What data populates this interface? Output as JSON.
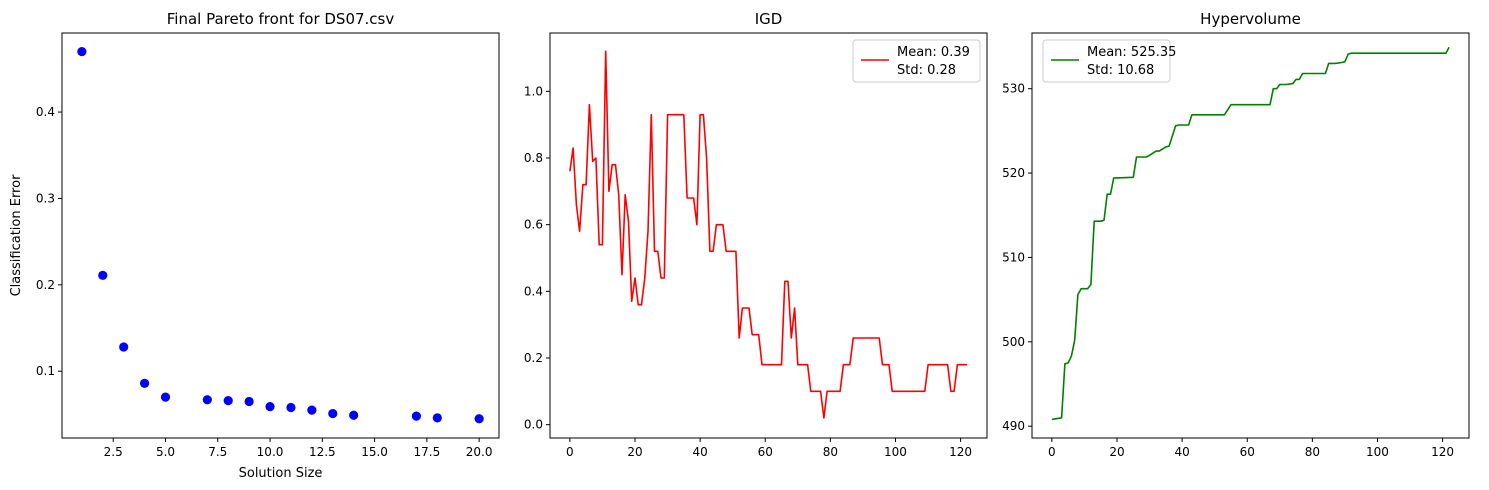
{
  "chart_data": [
    {
      "type": "scatter",
      "title": "Final Pareto front for DS07.csv",
      "xlabel": "Solution Size",
      "ylabel": "Classification Error",
      "xlim": [
        0.05,
        20.95
      ],
      "ylim": [
        0.0227,
        0.4915
      ],
      "xticks": [
        2.5,
        5.0,
        7.5,
        10.0,
        12.5,
        15.0,
        17.5,
        20.0
      ],
      "xtick_labels": [
        "2.5",
        "5.0",
        "7.5",
        "10.0",
        "12.5",
        "15.0",
        "17.5",
        "20.0"
      ],
      "yticks": [
        0.1,
        0.2,
        0.3,
        0.4
      ],
      "ytick_labels": [
        "0.1",
        "0.2",
        "0.3",
        "0.4"
      ],
      "color": "#0000ff",
      "x": [
        1,
        2,
        3,
        4,
        5,
        7,
        8,
        9,
        10,
        11,
        12,
        13,
        14,
        17,
        18,
        20
      ],
      "y": [
        0.47,
        0.211,
        0.128,
        0.086,
        0.07,
        0.067,
        0.066,
        0.065,
        0.059,
        0.058,
        0.055,
        0.051,
        0.049,
        0.048,
        0.046,
        0.045
      ],
      "grid": false
    },
    {
      "type": "line",
      "title": "IGD",
      "xlabel": "",
      "ylabel": "",
      "xlim": [
        -6.1,
        128.1
      ],
      "ylim": [
        -0.04,
        1.175
      ],
      "xticks": [
        0,
        20,
        40,
        60,
        80,
        100,
        120
      ],
      "xtick_labels": [
        "0",
        "20",
        "40",
        "60",
        "80",
        "100",
        "120"
      ],
      "yticks": [
        0.0,
        0.2,
        0.4,
        0.6,
        0.8,
        1.0
      ],
      "ytick_labels": [
        "0.0",
        "0.2",
        "0.4",
        "0.6",
        "0.8",
        "1.0"
      ],
      "legend": {
        "placement": "upper-right",
        "lines": [
          "Mean: 0.39",
          "Std: 0.28"
        ]
      },
      "grid": false,
      "series": [
        {
          "color": "#ff0000",
          "x": [
            0,
            1,
            2,
            3,
            4,
            5,
            6,
            7,
            8,
            9,
            10,
            11,
            12,
            13,
            14,
            15,
            16,
            17,
            18,
            19,
            20,
            21,
            22,
            23,
            24,
            25,
            26,
            27,
            28,
            29,
            30,
            35,
            36,
            37,
            38,
            39,
            40,
            41,
            42,
            43,
            44,
            45,
            46,
            47,
            48,
            51,
            52,
            53,
            55,
            56,
            58,
            59,
            65,
            66,
            67,
            68,
            69,
            70,
            73,
            74,
            77,
            78,
            79,
            83,
            84,
            86,
            87,
            95,
            96,
            98,
            99,
            109,
            110,
            116,
            117,
            118,
            119,
            122
          ],
          "y": [
            0.76,
            0.83,
            0.66,
            0.58,
            0.72,
            0.72,
            0.96,
            0.79,
            0.8,
            0.54,
            0.54,
            1.12,
            0.7,
            0.78,
            0.78,
            0.69,
            0.45,
            0.69,
            0.61,
            0.37,
            0.44,
            0.36,
            0.36,
            0.44,
            0.58,
            0.93,
            0.52,
            0.52,
            0.44,
            0.44,
            0.93,
            0.93,
            0.68,
            0.68,
            0.68,
            0.6,
            0.93,
            0.93,
            0.8,
            0.52,
            0.52,
            0.6,
            0.6,
            0.6,
            0.52,
            0.52,
            0.26,
            0.35,
            0.35,
            0.27,
            0.27,
            0.18,
            0.18,
            0.43,
            0.43,
            0.26,
            0.35,
            0.18,
            0.18,
            0.1,
            0.1,
            0.02,
            0.1,
            0.1,
            0.18,
            0.18,
            0.26,
            0.26,
            0.18,
            0.18,
            0.1,
            0.1,
            0.18,
            0.18,
            0.1,
            0.1,
            0.18,
            0.18
          ]
        }
      ]
    },
    {
      "type": "line",
      "title": "Hypervolume",
      "xlabel": "",
      "ylabel": "",
      "xlim": [
        -6.1,
        128.1
      ],
      "ylim": [
        488.6,
        536.6
      ],
      "xticks": [
        0,
        20,
        40,
        60,
        80,
        100,
        120
      ],
      "xtick_labels": [
        "0",
        "20",
        "40",
        "60",
        "80",
        "100",
        "120"
      ],
      "yticks": [
        490,
        500,
        510,
        520,
        530
      ],
      "ytick_labels": [
        "490",
        "500",
        "510",
        "520",
        "530"
      ],
      "legend": {
        "placement": "upper-left",
        "lines": [
          "Mean: 525.35",
          "Std: 10.68"
        ]
      },
      "grid": false,
      "series": [
        {
          "color": "#008000",
          "x": [
            0,
            3,
            4,
            5,
            6,
            7,
            8,
            9,
            10,
            11,
            12,
            13,
            14,
            15,
            16,
            17,
            18,
            19,
            25,
            26,
            29,
            30,
            32,
            33,
            35,
            36,
            38,
            39,
            42,
            43,
            53,
            54,
            55,
            67,
            68,
            69,
            70,
            72,
            74,
            75,
            76,
            77,
            84,
            85,
            87,
            89,
            90,
            91,
            92,
            97,
            121,
            122
          ],
          "y": [
            490.8,
            491.0,
            497.4,
            497.5,
            498.3,
            500.2,
            505.6,
            506.3,
            506.3,
            506.3,
            506.8,
            514.3,
            514.3,
            514.3,
            514.4,
            517.5,
            517.5,
            519.4,
            519.5,
            521.9,
            521.9,
            522.1,
            522.6,
            522.6,
            523.1,
            523.2,
            525.6,
            525.7,
            525.7,
            526.9,
            526.9,
            527.5,
            528.1,
            528.1,
            530.0,
            530.0,
            530.5,
            530.5,
            530.6,
            531.1,
            531.1,
            531.8,
            531.8,
            533.0,
            533.0,
            533.1,
            533.2,
            534.1,
            534.2,
            534.2,
            534.2,
            534.9
          ]
        }
      ]
    }
  ]
}
